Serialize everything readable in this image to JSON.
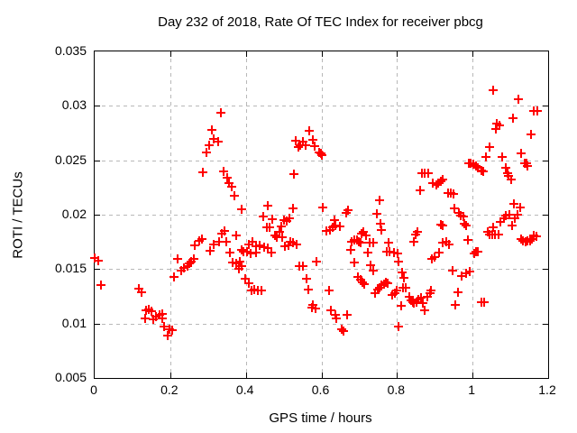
{
  "title": "Day 232 of 2018, Rate Of TEC Index for receiver pbcg",
  "chart_data": {
    "type": "scatter",
    "title": "Day 232 of 2018, Rate Of TEC Index for receiver pbcg",
    "xlabel": "GPS time / hours",
    "ylabel": "ROTI / TECUs",
    "xlim": [
      0,
      1.2
    ],
    "ylim": [
      0.005,
      0.035
    ],
    "x_ticks": [
      0,
      0.2,
      0.4,
      0.6,
      0.8,
      1,
      1.2
    ],
    "y_ticks": [
      0.005,
      0.01,
      0.015,
      0.02,
      0.025,
      0.03,
      0.035
    ],
    "grid": true,
    "legend": "none",
    "marker": "plus",
    "marker_color": "#ff0000",
    "series": [
      {
        "name": "ROTI",
        "points": [
          [
            0.001,
            0.016
          ],
          [
            0.009,
            0.0158
          ],
          [
            0.017,
            0.0135
          ],
          [
            0.117,
            0.0132
          ],
          [
            0.124,
            0.0129
          ],
          [
            0.133,
            0.0105
          ],
          [
            0.135,
            0.0112
          ],
          [
            0.143,
            0.0113
          ],
          [
            0.151,
            0.0111
          ],
          [
            0.156,
            0.0104
          ],
          [
            0.163,
            0.0106
          ],
          [
            0.171,
            0.0108
          ],
          [
            0.179,
            0.0109
          ],
          [
            0.18,
            0.0105
          ],
          [
            0.184,
            0.0097
          ],
          [
            0.193,
            0.0089
          ],
          [
            0.197,
            0.0095
          ],
          [
            0.205,
            0.0094
          ],
          [
            0.211,
            0.0143
          ],
          [
            0.22,
            0.0159
          ],
          [
            0.23,
            0.0149
          ],
          [
            0.237,
            0.0151
          ],
          [
            0.245,
            0.0153
          ],
          [
            0.251,
            0.0155
          ],
          [
            0.256,
            0.0157
          ],
          [
            0.262,
            0.0159
          ],
          [
            0.266,
            0.0172
          ],
          [
            0.276,
            0.0176
          ],
          [
            0.284,
            0.0178
          ],
          [
            0.287,
            0.0239
          ],
          [
            0.296,
            0.0257
          ],
          [
            0.302,
            0.0264
          ],
          [
            0.31,
            0.0278
          ],
          [
            0.315,
            0.027
          ],
          [
            0.327,
            0.0267
          ],
          [
            0.335,
            0.0294
          ],
          [
            0.34,
            0.024
          ],
          [
            0.351,
            0.0234
          ],
          [
            0.355,
            0.0229
          ],
          [
            0.363,
            0.0226
          ],
          [
            0.369,
            0.0217
          ],
          [
            0.388,
            0.0205
          ],
          [
            0.305,
            0.0167
          ],
          [
            0.315,
            0.0173
          ],
          [
            0.329,
            0.0175
          ],
          [
            0.337,
            0.0183
          ],
          [
            0.343,
            0.0185
          ],
          [
            0.349,
            0.0175
          ],
          [
            0.359,
            0.0165
          ],
          [
            0.365,
            0.0156
          ],
          [
            0.375,
            0.0181
          ],
          [
            0.375,
            0.0155
          ],
          [
            0.383,
            0.0157
          ],
          [
            0.381,
            0.015
          ],
          [
            0.388,
            0.0168
          ],
          [
            0.388,
            0.0153
          ],
          [
            0.394,
            0.0166
          ],
          [
            0.399,
            0.0141
          ],
          [
            0.403,
            0.0166
          ],
          [
            0.407,
            0.0137
          ],
          [
            0.409,
            0.0173
          ],
          [
            0.413,
            0.0164
          ],
          [
            0.417,
            0.0175
          ],
          [
            0.415,
            0.013
          ],
          [
            0.423,
            0.0131
          ],
          [
            0.432,
            0.013
          ],
          [
            0.441,
            0.013
          ],
          [
            0.426,
            0.0165
          ],
          [
            0.428,
            0.0171
          ],
          [
            0.436,
            0.0172
          ],
          [
            0.448,
            0.017
          ],
          [
            0.458,
            0.0169
          ],
          [
            0.468,
            0.0165
          ],
          [
            0.446,
            0.0198
          ],
          [
            0.455,
            0.0188
          ],
          [
            0.464,
            0.0188
          ],
          [
            0.469,
            0.0196
          ],
          [
            0.459,
            0.0208
          ],
          [
            0.478,
            0.0181
          ],
          [
            0.481,
            0.0179
          ],
          [
            0.489,
            0.0184
          ],
          [
            0.494,
            0.0189
          ],
          [
            0.496,
            0.0179
          ],
          [
            0.501,
            0.0195
          ],
          [
            0.509,
            0.0194
          ],
          [
            0.516,
            0.0197
          ],
          [
            0.503,
            0.0171
          ],
          [
            0.512,
            0.0172
          ],
          [
            0.518,
            0.0175
          ],
          [
            0.526,
            0.0174
          ],
          [
            0.535,
            0.0173
          ],
          [
            0.526,
            0.0206
          ],
          [
            0.528,
            0.0237
          ],
          [
            0.532,
            0.0268
          ],
          [
            0.54,
            0.0262
          ],
          [
            0.545,
            0.0264
          ],
          [
            0.551,
            0.0267
          ],
          [
            0.559,
            0.0264
          ],
          [
            0.568,
            0.0277
          ],
          [
            0.577,
            0.0269
          ],
          [
            0.582,
            0.0263
          ],
          [
            0.593,
            0.0257
          ],
          [
            0.598,
            0.0256
          ],
          [
            0.602,
            0.0255
          ],
          [
            0.542,
            0.0153
          ],
          [
            0.55,
            0.0153
          ],
          [
            0.561,
            0.0141
          ],
          [
            0.566,
            0.0131
          ],
          [
            0.574,
            0.0115
          ],
          [
            0.578,
            0.0117
          ],
          [
            0.585,
            0.0114
          ],
          [
            0.587,
            0.0157
          ],
          [
            0.604,
            0.0207
          ],
          [
            0.614,
            0.0185
          ],
          [
            0.623,
            0.0186
          ],
          [
            0.63,
            0.0188
          ],
          [
            0.634,
            0.0195
          ],
          [
            0.638,
            0.019
          ],
          [
            0.648,
            0.0189
          ],
          [
            0.62,
            0.013
          ],
          [
            0.625,
            0.0112
          ],
          [
            0.638,
            0.0108
          ],
          [
            0.64,
            0.0105
          ],
          [
            0.654,
            0.0095
          ],
          [
            0.659,
            0.0093
          ],
          [
            0.667,
            0.0108
          ],
          [
            0.665,
            0.0202
          ],
          [
            0.671,
            0.0204
          ],
          [
            0.678,
            0.0168
          ],
          [
            0.68,
            0.0175
          ],
          [
            0.686,
            0.0177
          ],
          [
            0.694,
            0.0177
          ],
          [
            0.699,
            0.0175
          ],
          [
            0.704,
            0.0174
          ],
          [
            0.707,
            0.0183
          ],
          [
            0.712,
            0.0184
          ],
          [
            0.717,
            0.0181
          ],
          [
            0.722,
            0.0165
          ],
          [
            0.728,
            0.0174
          ],
          [
            0.736,
            0.0174
          ],
          [
            0.688,
            0.0156
          ],
          [
            0.696,
            0.0143
          ],
          [
            0.704,
            0.014
          ],
          [
            0.709,
            0.0138
          ],
          [
            0.713,
            0.0136
          ],
          [
            0.73,
            0.0154
          ],
          [
            0.736,
            0.0149
          ],
          [
            0.741,
            0.0128
          ],
          [
            0.749,
            0.0131
          ],
          [
            0.753,
            0.0133
          ],
          [
            0.758,
            0.0135
          ],
          [
            0.765,
            0.0136
          ],
          [
            0.77,
            0.0138
          ],
          [
            0.776,
            0.0137
          ],
          [
            0.747,
            0.0201
          ],
          [
            0.753,
            0.0213
          ],
          [
            0.757,
            0.0192
          ],
          [
            0.759,
            0.0186
          ],
          [
            0.773,
            0.0166
          ],
          [
            0.777,
            0.0174
          ],
          [
            0.781,
            0.0166
          ],
          [
            0.787,
            0.0126
          ],
          [
            0.792,
            0.0165
          ],
          [
            0.795,
            0.0128
          ],
          [
            0.799,
            0.013
          ],
          [
            0.801,
            0.0164
          ],
          [
            0.803,
            0.0097
          ],
          [
            0.805,
            0.0157
          ],
          [
            0.81,
            0.0116
          ],
          [
            0.813,
            0.0147
          ],
          [
            0.815,
            0.0133
          ],
          [
            0.818,
            0.0142
          ],
          [
            0.824,
            0.0133
          ],
          [
            0.833,
            0.0125
          ],
          [
            0.837,
            0.0121
          ],
          [
            0.841,
            0.012
          ],
          [
            0.845,
            0.0119
          ],
          [
            0.845,
            0.0175
          ],
          [
            0.849,
            0.0182
          ],
          [
            0.851,
            0.012
          ],
          [
            0.855,
            0.0184
          ],
          [
            0.857,
            0.0122
          ],
          [
            0.863,
            0.0124
          ],
          [
            0.868,
            0.0119
          ],
          [
            0.874,
            0.0112
          ],
          [
            0.88,
            0.0125
          ],
          [
            0.887,
            0.0128
          ],
          [
            0.89,
            0.013
          ],
          [
            0.861,
            0.0222
          ],
          [
            0.867,
            0.0238
          ],
          [
            0.874,
            0.0238
          ],
          [
            0.882,
            0.0238
          ],
          [
            0.893,
            0.0159
          ],
          [
            0.9,
            0.0161
          ],
          [
            0.895,
            0.0229
          ],
          [
            0.903,
            0.0227
          ],
          [
            0.908,
            0.0229
          ],
          [
            0.915,
            0.0231
          ],
          [
            0.92,
            0.0232
          ],
          [
            0.912,
            0.0165
          ],
          [
            0.915,
            0.0191
          ],
          [
            0.922,
            0.019
          ],
          [
            0.922,
            0.0174
          ],
          [
            0.93,
            0.0175
          ],
          [
            0.938,
            0.0173
          ],
          [
            0.934,
            0.022
          ],
          [
            0.942,
            0.022
          ],
          [
            0.95,
            0.0219
          ],
          [
            0.946,
            0.0149
          ],
          [
            0.954,
            0.0117
          ],
          [
            0.962,
            0.0129
          ],
          [
            0.971,
            0.0144
          ],
          [
            0.983,
            0.0146
          ],
          [
            0.993,
            0.0148
          ],
          [
            0.953,
            0.0206
          ],
          [
            0.965,
            0.0202
          ],
          [
            0.969,
            0.0199
          ],
          [
            0.975,
            0.0198
          ],
          [
            0.979,
            0.0192
          ],
          [
            0.983,
            0.019
          ],
          [
            0.987,
            0.0177
          ],
          [
            0.991,
            0.0247
          ],
          [
            0.996,
            0.0247
          ],
          [
            1.003,
            0.0246
          ],
          [
            1.009,
            0.0245
          ],
          [
            1.015,
            0.0243
          ],
          [
            1.023,
            0.0241
          ],
          [
            1.028,
            0.024
          ],
          [
            1.004,
            0.0164
          ],
          [
            1.009,
            0.0166
          ],
          [
            1.015,
            0.0166
          ],
          [
            1.023,
            0.012
          ],
          [
            1.031,
            0.012
          ],
          [
            1.036,
            0.0253
          ],
          [
            1.044,
            0.0262
          ],
          [
            1.054,
            0.0314
          ],
          [
            1.062,
            0.0279
          ],
          [
            1.065,
            0.0284
          ],
          [
            1.072,
            0.0282
          ],
          [
            1.078,
            0.0253
          ],
          [
            1.039,
            0.0184
          ],
          [
            1.044,
            0.0182
          ],
          [
            1.052,
            0.0182
          ],
          [
            1.054,
            0.0188
          ],
          [
            1.06,
            0.0182
          ],
          [
            1.068,
            0.0182
          ],
          [
            1.074,
            0.0193
          ],
          [
            1.082,
            0.0197
          ],
          [
            1.089,
            0.0199
          ],
          [
            1.097,
            0.02
          ],
          [
            1.104,
            0.019
          ],
          [
            1.11,
            0.021
          ],
          [
            1.112,
            0.0197
          ],
          [
            1.12,
            0.02
          ],
          [
            1.125,
            0.0207
          ],
          [
            1.089,
            0.0243
          ],
          [
            1.092,
            0.0238
          ],
          [
            1.096,
            0.0236
          ],
          [
            1.102,
            0.0232
          ],
          [
            1.108,
            0.0289
          ],
          [
            1.121,
            0.0306
          ],
          [
            1.128,
            0.0256
          ],
          [
            1.128,
            0.0178
          ],
          [
            1.134,
            0.0176
          ],
          [
            1.137,
            0.0247
          ],
          [
            1.14,
            0.0175
          ],
          [
            1.142,
            0.0247
          ],
          [
            1.146,
            0.0245
          ],
          [
            1.146,
            0.0176
          ],
          [
            1.152,
            0.0176
          ],
          [
            1.155,
            0.0274
          ],
          [
            1.158,
            0.0178
          ],
          [
            1.163,
            0.0295
          ],
          [
            1.163,
            0.0181
          ],
          [
            1.17,
            0.018
          ],
          [
            1.171,
            0.0295
          ]
        ]
      }
    ]
  }
}
